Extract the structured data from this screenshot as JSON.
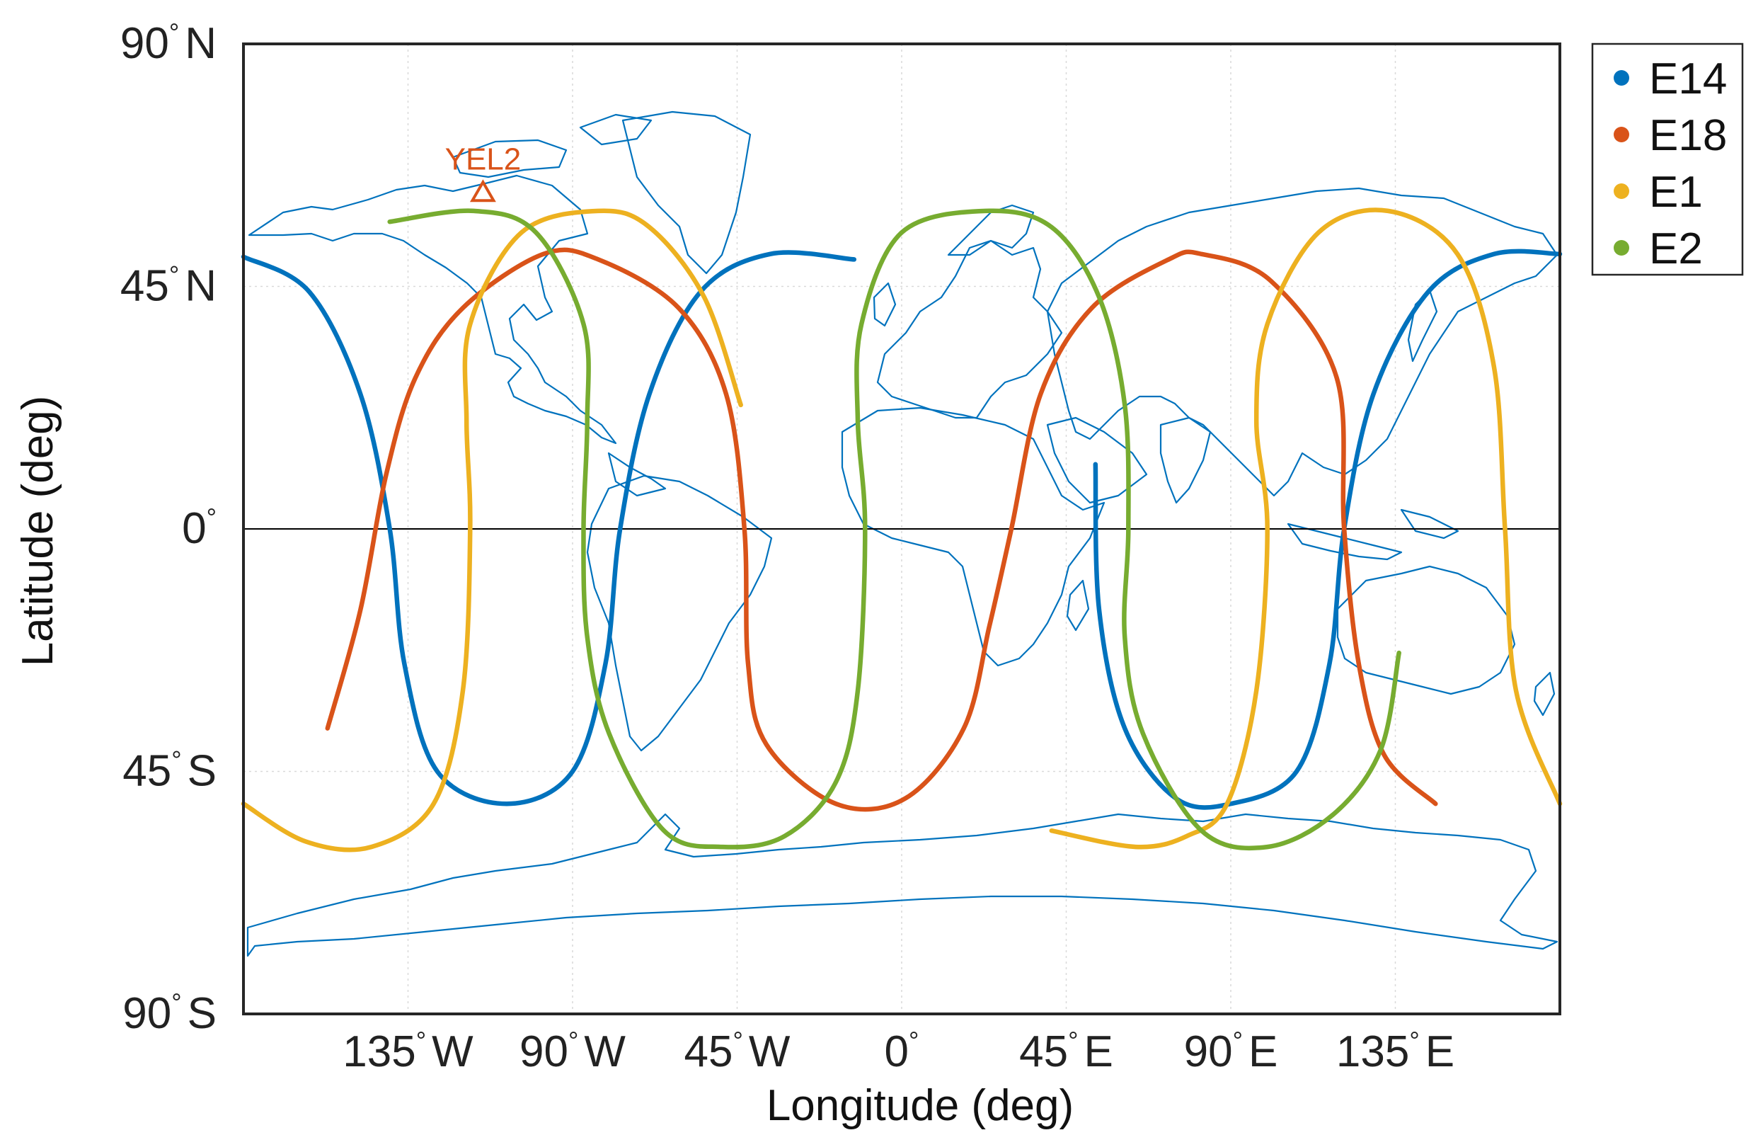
{
  "chart_data": {
    "type": "line",
    "xlabel": "Longitude (deg)",
    "ylabel": "Latitude (deg)",
    "xlim": [
      -180,
      180
    ],
    "ylim": [
      -90,
      90
    ],
    "grid": true,
    "legend_position": "outside-top-right",
    "x_ticks": [
      {
        "value": -135,
        "num": "135",
        "dir": "W"
      },
      {
        "value": -90,
        "num": "90",
        "dir": "W"
      },
      {
        "value": -45,
        "num": "45",
        "dir": "W"
      },
      {
        "value": 0,
        "num": "0",
        "dir": ""
      },
      {
        "value": 45,
        "num": "45",
        "dir": "E"
      },
      {
        "value": 90,
        "num": "90",
        "dir": "E"
      },
      {
        "value": 135,
        "num": "135",
        "dir": "E"
      }
    ],
    "y_ticks": [
      {
        "value": 90,
        "num": "90",
        "dir": "N"
      },
      {
        "value": 45,
        "num": "45",
        "dir": "N"
      },
      {
        "value": 0,
        "num": "0",
        "dir": ""
      },
      {
        "value": -45,
        "num": "45",
        "dir": "S"
      },
      {
        "value": -90,
        "num": "90",
        "dir": "S"
      }
    ],
    "degree_symbol": "°",
    "series": [
      {
        "name": "E14",
        "color": "#0072BD",
        "segments": [
          [
            [
              -180,
              50.5
            ],
            [
              -162,
              44
            ],
            [
              -148,
              25
            ],
            [
              -140,
              0
            ],
            [
              -136,
              -25
            ],
            [
              -127,
              -45
            ],
            [
              -108,
              -51
            ],
            [
              -90,
              -45
            ],
            [
              -81,
              -25
            ],
            [
              -77,
              0
            ],
            [
              -69,
              25
            ],
            [
              -55,
              44
            ],
            [
              -36,
              51
            ],
            [
              -13,
              50
            ]
          ],
          [
            [
              53,
              12
            ],
            [
              54,
              -15
            ],
            [
              61,
              -37
            ],
            [
              75,
              -50
            ],
            [
              90,
              -51
            ],
            [
              108,
              -45
            ],
            [
              117,
              -25
            ],
            [
              121,
              0
            ],
            [
              129,
              25
            ],
            [
              144,
              44
            ],
            [
              162,
              51
            ],
            [
              180,
              51
            ]
          ]
        ]
      },
      {
        "name": "E18",
        "color": "#D95319",
        "segments": [
          [
            [
              -157,
              -37
            ],
            [
              -148,
              -15
            ],
            [
              -141,
              10
            ],
            [
              -133,
              28
            ],
            [
              -120,
              41
            ],
            [
              -98,
              51
            ],
            [
              -83,
              50
            ],
            [
              -61,
              41
            ],
            [
              -48,
              25
            ],
            [
              -43,
              0
            ],
            [
              -42,
              -25
            ],
            [
              -37,
              -40
            ],
            [
              -18,
              -51
            ],
            [
              1,
              -50
            ],
            [
              17,
              -37
            ],
            [
              24,
              -18
            ],
            [
              30,
              0
            ],
            [
              38,
              25
            ],
            [
              52,
              41
            ],
            [
              73,
              50
            ],
            [
              82,
              51
            ],
            [
              101,
              46
            ],
            [
              119,
              28
            ],
            [
              121,
              0
            ],
            [
              125,
              -25
            ],
            [
              132,
              -42
            ],
            [
              146,
              -51
            ]
          ]
        ]
      },
      {
        "name": "E1",
        "color": "#EDB120",
        "segments": [
          [
            [
              -180,
              -51
            ],
            [
              -163,
              -58
            ],
            [
              -145,
              -59
            ],
            [
              -128,
              -51
            ],
            [
              -120,
              -30
            ],
            [
              -118,
              0
            ],
            [
              -119,
              20
            ],
            [
              -118,
              38
            ],
            [
              -104,
              55
            ],
            [
              -83,
              59
            ],
            [
              -69,
              56
            ],
            [
              -54,
              43
            ],
            [
              -44,
              23
            ]
          ],
          [
            [
              41,
              -56
            ],
            [
              64,
              -59
            ],
            [
              78,
              -57
            ],
            [
              89,
              -51
            ],
            [
              97,
              -30
            ],
            [
              100,
              0
            ],
            [
              97,
              20
            ],
            [
              100,
              38
            ],
            [
              114,
              55
            ],
            [
              133,
              59
            ],
            [
              152,
              51
            ],
            [
              162,
              30
            ],
            [
              165,
              0
            ],
            [
              168,
              -30
            ],
            [
              180,
              -51
            ]
          ]
        ]
      },
      {
        "name": "E2",
        "color": "#77AC30",
        "segments": [
          [
            [
              -140,
              57
            ],
            [
              -117,
              59
            ],
            [
              -100,
              55
            ],
            [
              -87,
              38
            ],
            [
              -86,
              20
            ],
            [
              -87,
              0
            ],
            [
              -86,
              -20
            ],
            [
              -80,
              -38
            ],
            [
              -65,
              -56
            ],
            [
              -49,
              -59
            ],
            [
              -32,
              -57
            ],
            [
              -18,
              -47
            ],
            [
              -12,
              -30
            ],
            [
              -10,
              0
            ],
            [
              -12,
              20
            ],
            [
              -11,
              38
            ],
            [
              0,
              55
            ],
            [
              23,
              59
            ],
            [
              41,
              56
            ],
            [
              54,
              43
            ],
            [
              61,
              23
            ],
            [
              62,
              0
            ],
            [
              61,
              -20
            ],
            [
              66,
              -38
            ],
            [
              82,
              -56
            ],
            [
              100,
              -59
            ],
            [
              118,
              -53
            ],
            [
              131,
              -41
            ],
            [
              136,
              -23
            ]
          ]
        ]
      }
    ],
    "station": {
      "label": "YEL2",
      "lon": -114.5,
      "lat": 62.5,
      "color": "#D95319"
    }
  }
}
